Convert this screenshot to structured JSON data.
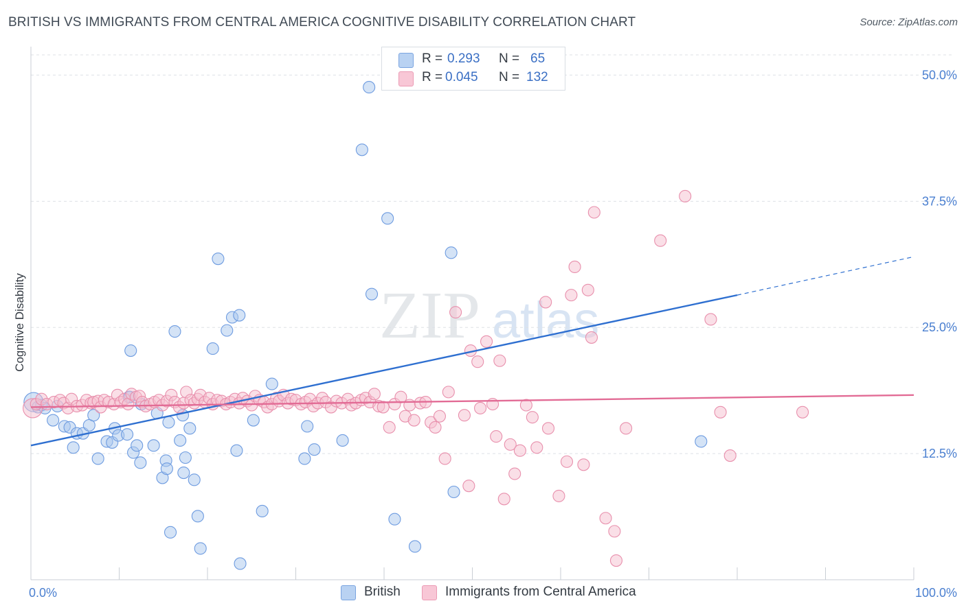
{
  "header": {
    "title": "BRITISH VS IMMIGRANTS FROM CENTRAL AMERICA COGNITIVE DISABILITY CORRELATION CHART",
    "source": "Source: ZipAtlas.com"
  },
  "watermark": {
    "zip": "ZIP",
    "atlas": "atlas"
  },
  "legend_top": {
    "rows": [
      {
        "r_label": "R =",
        "r_value": "0.293",
        "n_label": "N =",
        "n_value": "65"
      },
      {
        "r_label": "R =",
        "r_value": "0.045",
        "n_label": "N =",
        "n_value": "132"
      }
    ]
  },
  "legend_bottom": {
    "british": "British",
    "immigrants": "Immigrants from Central America"
  },
  "colors": {
    "british_fill": "#aac8ee",
    "british_stroke": "#6d9be0",
    "british_line": "#2e6fd0",
    "immigrants_fill": "#f6bfd0",
    "immigrants_stroke": "#e88fac",
    "immigrants_line": "#e26b95",
    "tick_text": "#4a7fd0",
    "grid": "#dde1e6"
  },
  "chart_data": {
    "type": "scatter",
    "title": "BRITISH VS IMMIGRANTS FROM CENTRAL AMERICA COGNITIVE DISABILITY CORRELATION CHART",
    "xlabel": "",
    "ylabel": "Cognitive Disability",
    "xlim": [
      0,
      100
    ],
    "ylim": [
      0,
      52
    ],
    "x_tick_labels": [
      "0.0%",
      "100.0%"
    ],
    "y_ticks": [
      12.5,
      25.0,
      37.5,
      50.0
    ],
    "y_tick_labels": [
      "12.5%",
      "25.0%",
      "37.5%",
      "50.0%"
    ],
    "grid": "horizontal dashed",
    "legend": "bottom-center",
    "series": [
      {
        "name": "British",
        "R": 0.293,
        "N": 65,
        "trend": {
          "x0": 0,
          "y0": 13.3,
          "x1": 80,
          "y1": 28.2,
          "dashed_to_x": 100,
          "dashed_to_y": 32.0
        },
        "points": [
          [
            0.3,
            17.6,
            "L"
          ],
          [
            0.8,
            17.1
          ],
          [
            1.2,
            17.3
          ],
          [
            1.6,
            17.0
          ],
          [
            2.5,
            15.8
          ],
          [
            3.0,
            17.2
          ],
          [
            3.8,
            15.2
          ],
          [
            4.4,
            15.1
          ],
          [
            4.8,
            13.1
          ],
          [
            5.2,
            14.5
          ],
          [
            5.9,
            14.5
          ],
          [
            6.6,
            15.3
          ],
          [
            7.1,
            16.3
          ],
          [
            7.6,
            12.0
          ],
          [
            8.6,
            13.7
          ],
          [
            9.2,
            13.6
          ],
          [
            9.5,
            15.0
          ],
          [
            9.9,
            14.3
          ],
          [
            10.9,
            14.4
          ],
          [
            11.1,
            18.1
          ],
          [
            11.6,
            12.6
          ],
          [
            12.0,
            13.3
          ],
          [
            12.5,
            17.4
          ],
          [
            11.2,
            18.1
          ],
          [
            11.3,
            22.7
          ],
          [
            12.4,
            11.6
          ],
          [
            13.9,
            13.3
          ],
          [
            14.3,
            16.5
          ],
          [
            14.9,
            10.1
          ],
          [
            15.3,
            11.8
          ],
          [
            15.4,
            11.0
          ],
          [
            15.6,
            15.6
          ],
          [
            15.8,
            4.7
          ],
          [
            16.3,
            24.6
          ],
          [
            16.9,
            13.8
          ],
          [
            17.2,
            16.3
          ],
          [
            17.3,
            10.6
          ],
          [
            17.5,
            12.1
          ],
          [
            18.0,
            15.0
          ],
          [
            18.5,
            9.9
          ],
          [
            18.9,
            6.3
          ],
          [
            19.2,
            3.1
          ],
          [
            20.6,
            22.9
          ],
          [
            21.2,
            31.8
          ],
          [
            22.2,
            24.7
          ],
          [
            22.8,
            26.0
          ],
          [
            23.3,
            12.8
          ],
          [
            23.6,
            26.2
          ],
          [
            23.7,
            1.6
          ],
          [
            25.2,
            15.8
          ],
          [
            26.2,
            6.8
          ],
          [
            27.3,
            19.4
          ],
          [
            31.0,
            12.0
          ],
          [
            31.3,
            15.2
          ],
          [
            32.1,
            12.9
          ],
          [
            35.3,
            13.8
          ],
          [
            37.5,
            42.6
          ],
          [
            38.3,
            48.8
          ],
          [
            38.6,
            28.3
          ],
          [
            40.4,
            35.8
          ],
          [
            41.2,
            6.0
          ],
          [
            43.5,
            3.3
          ],
          [
            47.6,
            32.4
          ],
          [
            47.9,
            8.7
          ],
          [
            75.9,
            13.7
          ]
        ]
      },
      {
        "name": "Immigrants from Central America",
        "R": 0.045,
        "N": 132,
        "trend": {
          "x0": 0,
          "y0": 17.1,
          "x1": 100,
          "y1": 18.3
        },
        "points": [
          [
            0.2,
            17.0,
            "L"
          ],
          [
            0.6,
            17.4
          ],
          [
            1.2,
            17.9
          ],
          [
            1.8,
            17.4
          ],
          [
            2.6,
            17.6
          ],
          [
            3.3,
            17.8
          ],
          [
            3.7,
            17.5
          ],
          [
            4.2,
            17.0
          ],
          [
            4.6,
            17.9
          ],
          [
            5.2,
            17.2
          ],
          [
            5.8,
            17.3
          ],
          [
            6.3,
            17.8
          ],
          [
            6.8,
            17.5
          ],
          [
            7.1,
            17.6
          ],
          [
            7.6,
            17.7
          ],
          [
            7.9,
            17.1
          ],
          [
            8.3,
            17.8
          ],
          [
            8.8,
            17.6
          ],
          [
            9.4,
            17.4
          ],
          [
            9.8,
            18.3
          ],
          [
            10.2,
            17.6
          ],
          [
            10.6,
            17.9
          ],
          [
            11.0,
            17.4
          ],
          [
            11.4,
            18.4
          ],
          [
            11.9,
            18.1
          ],
          [
            12.3,
            18.2
          ],
          [
            12.6,
            17.6
          ],
          [
            13.0,
            17.2
          ],
          [
            13.5,
            17.4
          ],
          [
            14.0,
            17.6
          ],
          [
            14.5,
            17.8
          ],
          [
            14.9,
            17.3
          ],
          [
            15.4,
            17.7
          ],
          [
            15.9,
            18.3
          ],
          [
            16.3,
            17.6
          ],
          [
            16.8,
            17.1
          ],
          [
            17.3,
            17.5
          ],
          [
            17.6,
            18.6
          ],
          [
            18.1,
            17.8
          ],
          [
            18.5,
            17.5
          ],
          [
            18.9,
            17.9
          ],
          [
            19.2,
            18.3
          ],
          [
            19.7,
            17.6
          ],
          [
            20.2,
            18.0
          ],
          [
            20.6,
            17.4
          ],
          [
            21.1,
            17.8
          ],
          [
            21.6,
            17.7
          ],
          [
            22.1,
            17.4
          ],
          [
            22.6,
            17.6
          ],
          [
            23.1,
            17.9
          ],
          [
            23.6,
            17.5
          ],
          [
            24.0,
            18.0
          ],
          [
            24.5,
            17.7
          ],
          [
            25.0,
            17.3
          ],
          [
            25.4,
            18.2
          ],
          [
            25.9,
            17.8
          ],
          [
            26.4,
            17.6
          ],
          [
            26.8,
            17.1
          ],
          [
            27.3,
            17.4
          ],
          [
            27.8,
            18.0
          ],
          [
            28.1,
            17.7
          ],
          [
            28.6,
            18.3
          ],
          [
            29.1,
            17.5
          ],
          [
            29.5,
            17.9
          ],
          [
            30.0,
            17.8
          ],
          [
            30.6,
            17.4
          ],
          [
            31.1,
            17.6
          ],
          [
            31.6,
            17.9
          ],
          [
            32.0,
            17.2
          ],
          [
            32.5,
            17.5
          ],
          [
            33.0,
            18.0
          ],
          [
            33.4,
            17.6
          ],
          [
            34.0,
            17.1
          ],
          [
            34.6,
            17.7
          ],
          [
            35.2,
            17.5
          ],
          [
            35.9,
            17.9
          ],
          [
            36.3,
            17.3
          ],
          [
            36.8,
            17.5
          ],
          [
            37.4,
            17.8
          ],
          [
            37.9,
            18.0
          ],
          [
            38.4,
            17.6
          ],
          [
            38.9,
            18.4
          ],
          [
            39.4,
            17.2
          ],
          [
            39.9,
            17.1
          ],
          [
            40.6,
            15.1
          ],
          [
            41.2,
            17.4
          ],
          [
            41.9,
            18.1
          ],
          [
            42.4,
            16.2
          ],
          [
            42.9,
            17.3
          ],
          [
            43.4,
            15.8
          ],
          [
            44.1,
            17.5
          ],
          [
            44.7,
            17.6
          ],
          [
            45.3,
            15.6
          ],
          [
            45.8,
            15.1
          ],
          [
            46.3,
            16.2
          ],
          [
            46.9,
            12.0
          ],
          [
            47.3,
            18.6
          ],
          [
            48.1,
            26.5
          ],
          [
            49.1,
            16.3
          ],
          [
            49.6,
            9.3
          ],
          [
            49.8,
            22.7
          ],
          [
            50.6,
            21.6
          ],
          [
            50.9,
            17.0
          ],
          [
            51.6,
            23.6
          ],
          [
            52.3,
            17.4
          ],
          [
            52.7,
            14.2
          ],
          [
            53.1,
            21.7
          ],
          [
            53.6,
            8.0
          ],
          [
            54.3,
            13.4
          ],
          [
            54.8,
            10.5
          ],
          [
            55.4,
            12.8
          ],
          [
            56.1,
            17.3
          ],
          [
            56.8,
            16.1
          ],
          [
            57.3,
            13.1
          ],
          [
            58.3,
            27.5
          ],
          [
            58.6,
            15.0
          ],
          [
            59.8,
            8.3
          ],
          [
            60.7,
            11.7
          ],
          [
            61.2,
            28.2
          ],
          [
            61.6,
            31.0
          ],
          [
            62.6,
            11.4
          ],
          [
            63.1,
            28.7
          ],
          [
            63.5,
            24.0
          ],
          [
            63.8,
            36.4
          ],
          [
            65.1,
            6.1
          ],
          [
            66.1,
            4.8
          ],
          [
            66.3,
            1.9
          ],
          [
            67.4,
            15.0
          ],
          [
            71.3,
            33.6
          ],
          [
            74.1,
            38.0
          ],
          [
            77.0,
            25.8
          ],
          [
            78.1,
            16.6
          ],
          [
            79.2,
            12.3
          ],
          [
            87.4,
            16.6
          ]
        ]
      }
    ]
  }
}
